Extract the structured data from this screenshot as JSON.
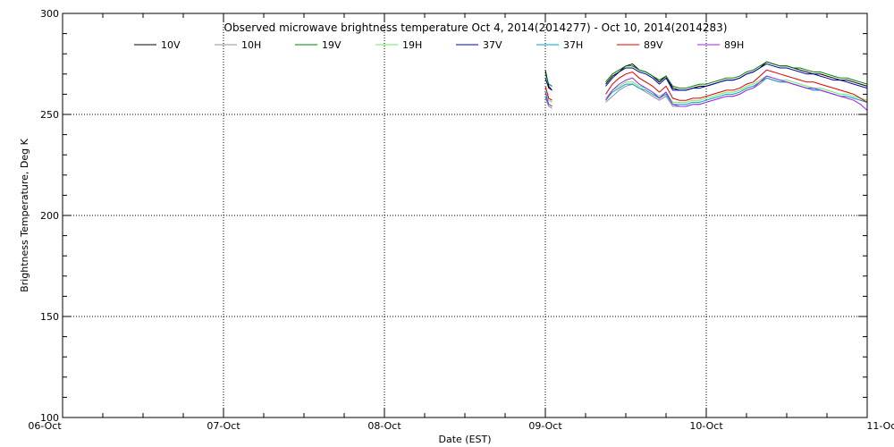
{
  "chart_data": {
    "type": "line",
    "title": "Observed microwave brightness temperature Oct  4, 2014(2014277) - Oct 10, 2014(2014283)",
    "xlabel": "Date (EST)",
    "ylabel": "Brightness Temperature, Deg K",
    "xlim": [
      "2014-10-06T00:00",
      "2014-10-11T00:00"
    ],
    "ylim": [
      100,
      300
    ],
    "x_ticks": [
      {
        "x": "2014-10-06T00:00",
        "label": "06-Oct"
      },
      {
        "x": "2014-10-07T00:00",
        "label": "07-Oct"
      },
      {
        "x": "2014-10-08T00:00",
        "label": "08-Oct"
      },
      {
        "x": "2014-10-09T00:00",
        "label": "09-Oct"
      },
      {
        "x": "2014-10-10T00:00",
        "label": "10-Oct"
      },
      {
        "x": "2014-10-11T00:00",
        "label": "11-Oct"
      }
    ],
    "y_ticks": [
      100,
      150,
      200,
      250,
      300
    ],
    "grid": "dotted at major ticks",
    "legend_position": "top",
    "x": [
      "2014-10-09T00:00",
      "2014-10-09T00:30",
      "2014-10-09T01:00",
      null,
      "2014-10-09T09:00",
      "2014-10-09T10:00",
      "2014-10-09T11:00",
      "2014-10-09T12:00",
      "2014-10-09T13:00",
      "2014-10-09T14:00",
      "2014-10-09T15:00",
      "2014-10-09T16:00",
      "2014-10-09T17:00",
      "2014-10-09T18:00",
      "2014-10-09T19:00",
      "2014-10-09T20:00",
      "2014-10-09T21:00",
      "2014-10-09T22:00",
      "2014-10-09T23:00",
      "2014-10-10T00:00",
      "2014-10-10T01:00",
      "2014-10-10T02:00",
      "2014-10-10T03:00",
      "2014-10-10T04:00",
      "2014-10-10T05:00",
      "2014-10-10T06:00",
      "2014-10-10T07:00",
      "2014-10-10T08:00",
      "2014-10-10T09:00",
      "2014-10-10T10:00",
      "2014-10-10T11:00",
      "2014-10-10T12:00",
      "2014-10-10T13:00",
      "2014-10-10T14:00",
      "2014-10-10T15:00",
      "2014-10-10T16:00",
      "2014-10-10T17:00",
      "2014-10-10T18:00",
      "2014-10-10T19:00",
      "2014-10-10T20:00",
      "2014-10-10T21:00",
      "2014-10-10T22:00",
      "2014-10-10T23:00",
      "2014-10-11T00:00"
    ],
    "series": [
      {
        "name": "10V",
        "color": "#000000",
        "values": [
          272,
          264,
          262,
          null,
          265,
          269,
          271,
          274,
          275,
          272,
          271,
          269,
          266,
          269,
          263,
          262,
          262,
          263,
          264,
          264,
          265,
          266,
          267,
          267,
          268,
          270,
          271,
          273,
          276,
          275,
          274,
          274,
          273,
          272,
          271,
          270,
          270,
          269,
          268,
          267,
          267,
          266,
          265,
          264
        ]
      },
      {
        "name": "10H",
        "color": "#909090",
        "values": [
          258,
          254,
          253,
          null,
          256,
          259,
          262,
          264,
          265,
          263,
          261,
          259,
          257,
          259,
          254,
          254,
          254,
          255,
          255,
          256,
          257,
          258,
          259,
          259,
          260,
          262,
          263,
          265,
          268,
          267,
          266,
          266,
          265,
          264,
          263,
          262,
          262,
          261,
          260,
          259,
          259,
          258,
          257,
          256
        ]
      },
      {
        "name": "19V",
        "color": "#008000",
        "values": [
          270,
          265,
          264,
          null,
          266,
          270,
          272,
          274,
          274,
          272,
          271,
          269,
          267,
          269,
          264,
          263,
          263,
          264,
          265,
          265,
          266,
          267,
          268,
          268,
          269,
          271,
          272,
          274,
          276,
          275,
          274,
          274,
          273,
          273,
          272,
          271,
          271,
          270,
          269,
          268,
          268,
          267,
          266,
          265
        ]
      },
      {
        "name": "19H",
        "color": "#66ee66",
        "values": [
          262,
          257,
          256,
          null,
          258,
          262,
          264,
          266,
          266,
          264,
          263,
          261,
          259,
          261,
          256,
          256,
          256,
          257,
          257,
          258,
          259,
          260,
          261,
          261,
          262,
          264,
          265,
          267,
          269,
          268,
          267,
          267,
          266,
          265,
          264,
          263,
          263,
          262,
          261,
          260,
          260,
          259,
          258,
          257
        ]
      },
      {
        "name": "37V",
        "color": "#0000aa",
        "values": [
          268,
          263,
          262,
          null,
          264,
          268,
          271,
          273,
          273,
          271,
          270,
          268,
          265,
          268,
          262,
          262,
          262,
          263,
          263,
          264,
          265,
          266,
          267,
          267,
          268,
          270,
          271,
          273,
          275,
          274,
          273,
          273,
          272,
          271,
          270,
          270,
          269,
          268,
          267,
          267,
          266,
          265,
          264,
          263
        ]
      },
      {
        "name": "37H",
        "color": "#00a0d0",
        "values": [
          259,
          255,
          254,
          null,
          257,
          261,
          263,
          265,
          265,
          263,
          262,
          260,
          258,
          260,
          255,
          255,
          255,
          256,
          256,
          257,
          258,
          259,
          260,
          260,
          261,
          263,
          264,
          266,
          268,
          267,
          266,
          266,
          265,
          264,
          263,
          262,
          262,
          261,
          260,
          259,
          259,
          258,
          257,
          256
        ]
      },
      {
        "name": "89V",
        "color": "#e00000",
        "values": [
          264,
          258,
          257,
          null,
          260,
          265,
          268,
          270,
          271,
          268,
          266,
          264,
          261,
          264,
          258,
          257,
          257,
          258,
          258,
          259,
          260,
          261,
          262,
          262,
          263,
          265,
          266,
          269,
          272,
          271,
          270,
          269,
          268,
          267,
          266,
          266,
          265,
          264,
          263,
          262,
          261,
          260,
          258,
          256
        ]
      },
      {
        "name": "89H",
        "color": "#a020f0",
        "values": [
          261,
          255,
          254,
          null,
          257,
          262,
          265,
          267,
          268,
          265,
          263,
          261,
          258,
          261,
          255,
          254,
          254,
          255,
          255,
          256,
          257,
          258,
          259,
          259,
          260,
          262,
          263,
          266,
          269,
          268,
          267,
          266,
          265,
          264,
          263,
          263,
          262,
          261,
          260,
          259,
          258,
          257,
          255,
          252
        ]
      }
    ]
  }
}
